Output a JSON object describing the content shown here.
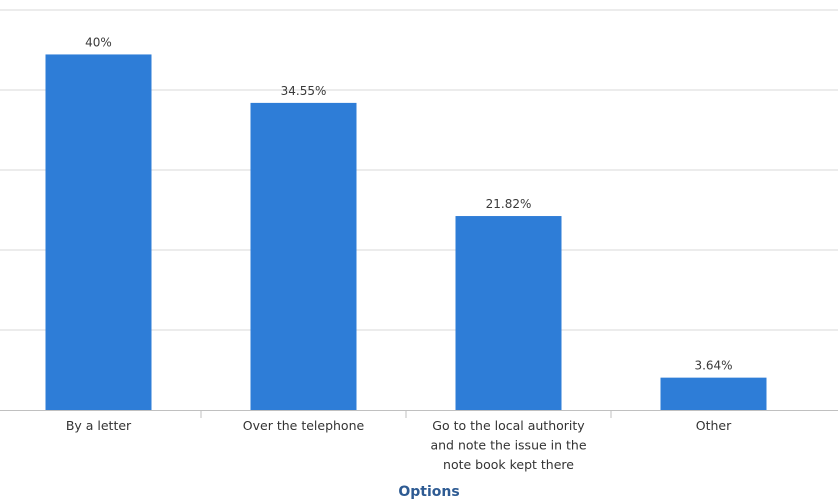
{
  "chart_data": {
    "type": "bar",
    "title": "",
    "xlabel": "Options",
    "ylabel": "",
    "ylim": [
      0,
      45
    ],
    "grid": true,
    "categories": [
      [
        "By a letter"
      ],
      [
        "Over the telephone"
      ],
      [
        "Go to the local authority",
        "and note the issue in the",
        "note book kept there"
      ],
      [
        "Other"
      ]
    ],
    "values": [
      40,
      34.55,
      21.82,
      3.64
    ],
    "data_labels": [
      "40%",
      "34.55%",
      "21.82%",
      "3.64%"
    ],
    "colors": {
      "bar": "#2e7dd7"
    }
  }
}
